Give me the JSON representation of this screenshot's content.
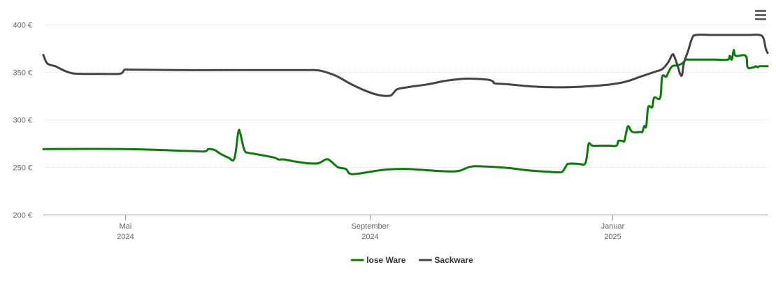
{
  "chart_data": {
    "type": "line",
    "title": "",
    "xlabel": "",
    "ylabel": "",
    "ylim": [
      200,
      400
    ],
    "y_ticks": [
      {
        "value": 200,
        "label": "200 €"
      },
      {
        "value": 250,
        "label": "250 €"
      },
      {
        "value": 300,
        "label": "300 €"
      },
      {
        "value": 350,
        "label": "350 €"
      },
      {
        "value": 400,
        "label": "400 €"
      }
    ],
    "x_range": [
      "2024-03-21",
      "2025-03-20"
    ],
    "x_ticks": [
      {
        "date": "2024-05-01",
        "month": "Mai",
        "year": "2024"
      },
      {
        "date": "2024-09-01",
        "month": "September",
        "year": "2024"
      },
      {
        "date": "2025-01-01",
        "month": "Januar",
        "year": "2025"
      }
    ],
    "grid": true,
    "legend_position": "bottom-center",
    "series": [
      {
        "name": "lose Ware",
        "color": "#0a7a0a",
        "points": [
          [
            "2024-03-21",
            269
          ],
          [
            "2024-05-01",
            269
          ],
          [
            "2024-06-01",
            267
          ],
          [
            "2024-06-10",
            266.5
          ],
          [
            "2024-06-12",
            269
          ],
          [
            "2024-06-15",
            268
          ],
          [
            "2024-06-18",
            264
          ],
          [
            "2024-06-22",
            260
          ],
          [
            "2024-06-25",
            259
          ],
          [
            "2024-06-27",
            287
          ],
          [
            "2024-06-28",
            285
          ],
          [
            "2024-06-30",
            268
          ],
          [
            "2024-07-02",
            265
          ],
          [
            "2024-07-05",
            264
          ],
          [
            "2024-07-15",
            260
          ],
          [
            "2024-07-17",
            258
          ],
          [
            "2024-07-20",
            258
          ],
          [
            "2024-07-25",
            256
          ],
          [
            "2024-08-01",
            254
          ],
          [
            "2024-08-06",
            254
          ],
          [
            "2024-08-10",
            258
          ],
          [
            "2024-08-12",
            257
          ],
          [
            "2024-08-16",
            250
          ],
          [
            "2024-08-20",
            248
          ],
          [
            "2024-08-22",
            243
          ],
          [
            "2024-08-26",
            243
          ],
          [
            "2024-09-01",
            245
          ],
          [
            "2024-09-10",
            247.5
          ],
          [
            "2024-09-20",
            248
          ],
          [
            "2024-10-01",
            246.5
          ],
          [
            "2024-10-10",
            245.5
          ],
          [
            "2024-10-16",
            246
          ],
          [
            "2024-10-22",
            250.5
          ],
          [
            "2024-10-30",
            250.5
          ],
          [
            "2024-11-10",
            249
          ],
          [
            "2024-11-20",
            246.5
          ],
          [
            "2024-11-30",
            245
          ],
          [
            "2024-12-05",
            244.5
          ],
          [
            "2024-12-07",
            245.5
          ],
          [
            "2024-12-09",
            252
          ],
          [
            "2024-12-10",
            253.5
          ],
          [
            "2024-12-14",
            253.5
          ],
          [
            "2024-12-16",
            253
          ],
          [
            "2024-12-18",
            253
          ],
          [
            "2024-12-19",
            259
          ],
          [
            "2024-12-20",
            274
          ],
          [
            "2024-12-21",
            274
          ],
          [
            "2024-12-22",
            272.5
          ],
          [
            "2024-12-26",
            272.5
          ],
          [
            "2024-12-30",
            272.5
          ],
          [
            "2025-01-03",
            272.5
          ],
          [
            "2025-01-04",
            277.5
          ],
          [
            "2025-01-06",
            277.5
          ],
          [
            "2025-01-07",
            277.5
          ],
          [
            "2025-01-08",
            287
          ],
          [
            "2025-01-09",
            293
          ],
          [
            "2025-01-11",
            287
          ],
          [
            "2025-01-15",
            287
          ],
          [
            "2025-01-16",
            287
          ],
          [
            "2025-01-17",
            293
          ],
          [
            "2025-01-18",
            293
          ],
          [
            "2025-01-19",
            313
          ],
          [
            "2025-01-21",
            313
          ],
          [
            "2025-01-22",
            323
          ],
          [
            "2025-01-25",
            323
          ],
          [
            "2025-01-26",
            345
          ],
          [
            "2025-01-28",
            345
          ],
          [
            "2025-01-29",
            349
          ],
          [
            "2025-01-31",
            356
          ],
          [
            "2025-02-03",
            357
          ],
          [
            "2025-02-05",
            359
          ],
          [
            "2025-02-06",
            361
          ],
          [
            "2025-02-07",
            363
          ],
          [
            "2025-02-08",
            363
          ],
          [
            "2025-02-12",
            363
          ],
          [
            "2025-02-22",
            363
          ],
          [
            "2025-02-28",
            363
          ],
          [
            "2025-03-01",
            367
          ],
          [
            "2025-03-02",
            363
          ],
          [
            "2025-03-03",
            373
          ],
          [
            "2025-03-04",
            367
          ],
          [
            "2025-03-09",
            367
          ],
          [
            "2025-03-10",
            355
          ],
          [
            "2025-03-13",
            355
          ],
          [
            "2025-03-14",
            356
          ],
          [
            "2025-03-15",
            355
          ],
          [
            "2025-03-16",
            356
          ],
          [
            "2025-03-20",
            356
          ]
        ]
      },
      {
        "name": "Sackware",
        "color": "#434348",
        "points": [
          [
            "2024-03-21",
            368
          ],
          [
            "2024-03-23",
            359
          ],
          [
            "2024-03-27",
            356
          ],
          [
            "2024-04-01",
            351
          ],
          [
            "2024-04-05",
            348.5
          ],
          [
            "2024-04-10",
            348
          ],
          [
            "2024-04-20",
            348
          ],
          [
            "2024-04-28",
            348
          ],
          [
            "2024-04-30",
            350
          ],
          [
            "2024-05-01",
            352.5
          ],
          [
            "2024-05-05",
            352.5
          ],
          [
            "2024-05-30",
            352
          ],
          [
            "2024-06-30",
            352
          ],
          [
            "2024-07-30",
            352
          ],
          [
            "2024-08-04",
            352
          ],
          [
            "2024-08-08",
            351
          ],
          [
            "2024-08-15",
            346
          ],
          [
            "2024-08-22",
            338
          ],
          [
            "2024-08-29",
            331
          ],
          [
            "2024-09-05",
            326
          ],
          [
            "2024-09-11",
            325
          ],
          [
            "2024-09-13",
            328
          ],
          [
            "2024-09-15",
            332
          ],
          [
            "2024-09-20",
            334
          ],
          [
            "2024-09-30",
            337
          ],
          [
            "2024-10-10",
            341
          ],
          [
            "2024-10-20",
            343
          ],
          [
            "2024-10-30",
            342
          ],
          [
            "2024-11-02",
            340
          ],
          [
            "2024-11-03",
            338
          ],
          [
            "2024-11-10",
            337
          ],
          [
            "2024-11-20",
            335
          ],
          [
            "2024-12-01",
            334
          ],
          [
            "2024-12-10",
            334
          ],
          [
            "2024-12-20",
            335
          ],
          [
            "2024-12-31",
            337
          ],
          [
            "2025-01-08",
            340
          ],
          [
            "2025-01-15",
            345
          ],
          [
            "2025-01-22",
            350
          ],
          [
            "2025-01-26",
            353
          ],
          [
            "2025-01-29",
            360
          ],
          [
            "2025-01-31",
            368
          ],
          [
            "2025-02-01",
            367
          ],
          [
            "2025-02-03",
            355
          ],
          [
            "2025-02-04",
            348
          ],
          [
            "2025-02-05",
            347
          ],
          [
            "2025-02-06",
            360
          ],
          [
            "2025-02-08",
            372
          ],
          [
            "2025-02-10",
            385
          ],
          [
            "2025-02-12",
            389
          ],
          [
            "2025-02-20",
            389
          ],
          [
            "2025-03-01",
            389
          ],
          [
            "2025-03-10",
            389
          ],
          [
            "2025-03-16",
            389
          ],
          [
            "2025-03-18",
            385
          ],
          [
            "2025-03-19",
            375
          ],
          [
            "2025-03-20",
            370
          ]
        ]
      }
    ]
  }
}
